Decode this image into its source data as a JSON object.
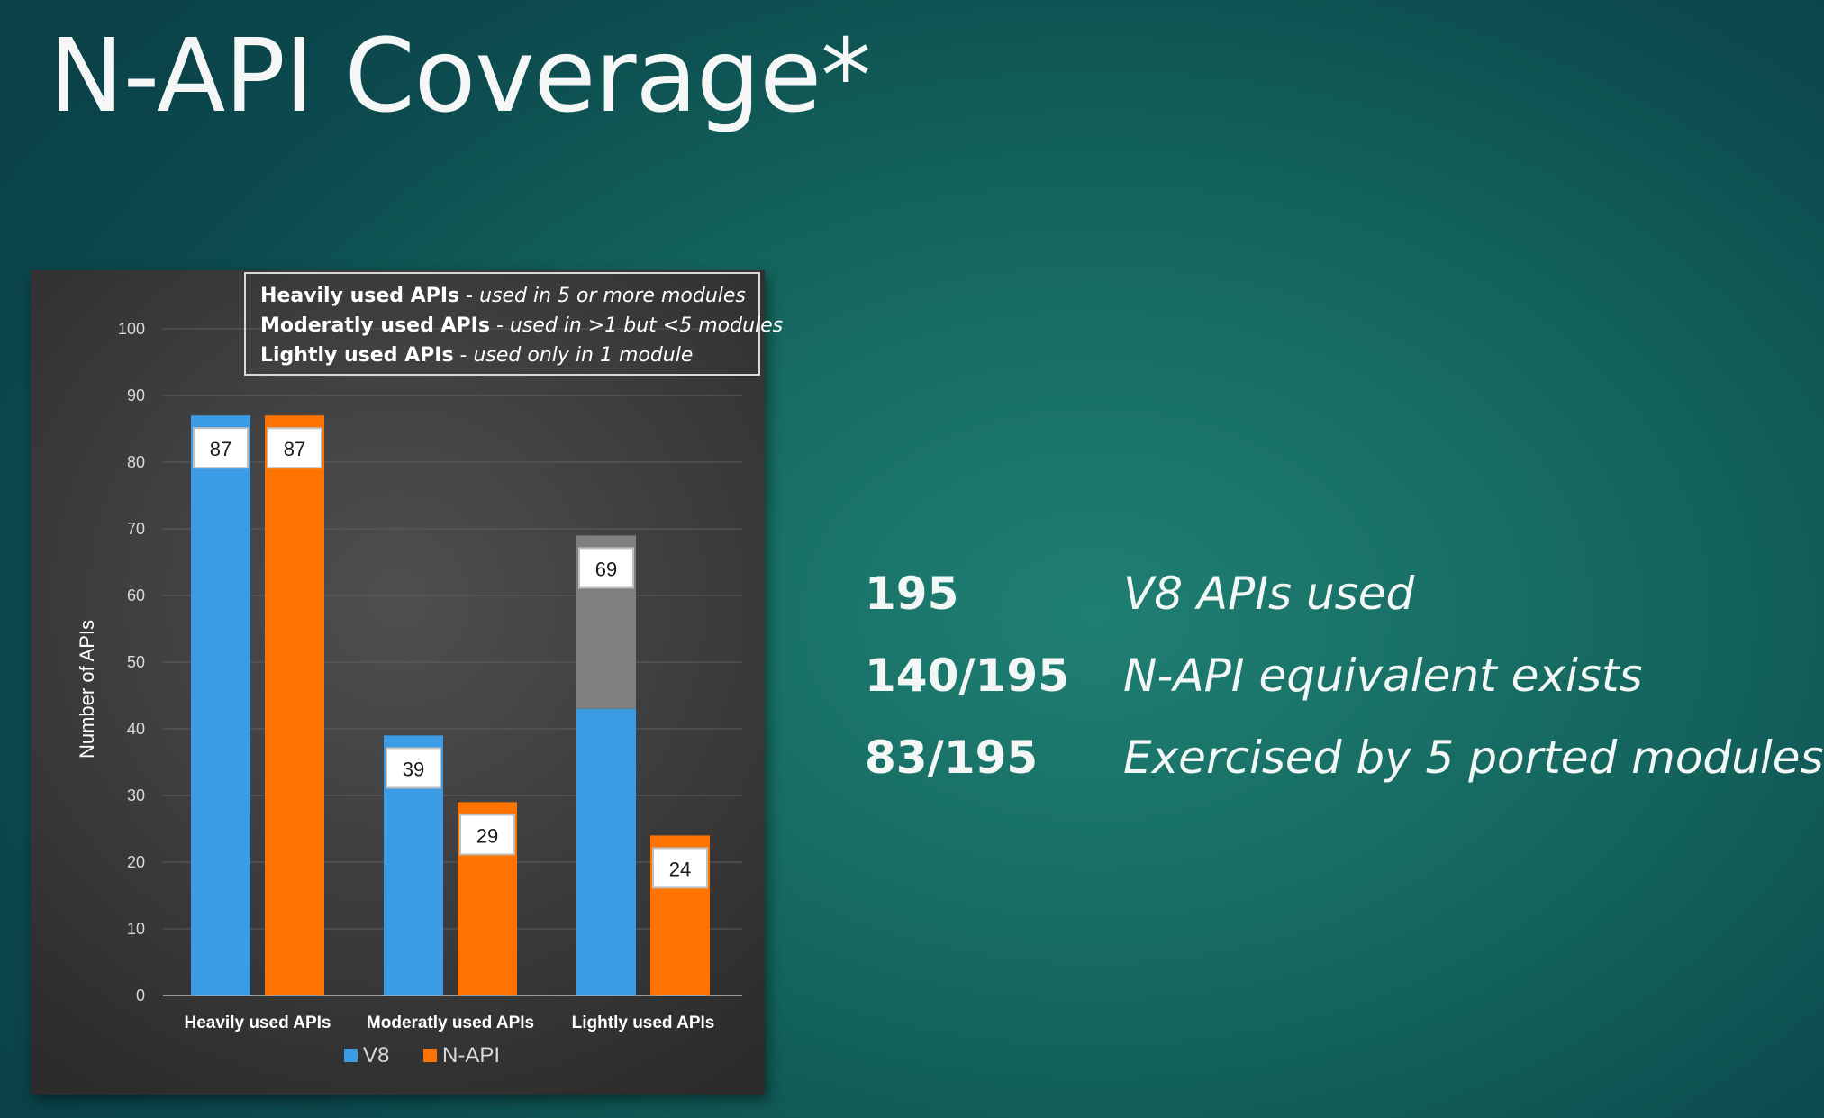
{
  "slide": {
    "title": "N-API Coverage*"
  },
  "definitions": [
    {
      "term": "Heavily used APIs",
      "desc": "used in 5 or more modules"
    },
    {
      "term": "Moderatly used APIs",
      "desc": "used in >1 but <5 modules"
    },
    {
      "term": "Lightly used APIs",
      "desc": "used only in 1 module"
    }
  ],
  "stats": [
    {
      "value": "195",
      "label": "V8 APIs used"
    },
    {
      "value": "140/195",
      "label": "N-API equivalent exists"
    },
    {
      "value": "83/195",
      "label": "Exercised by 5 ported modules"
    }
  ],
  "chart_data": {
    "type": "bar",
    "categories": [
      "Heavily used APIs",
      "Moderatly used APIs",
      "Lightly used APIs"
    ],
    "series": [
      {
        "name": "V8",
        "values": [
          87,
          39,
          69
        ],
        "color": "#3b9be4"
      },
      {
        "name": "N-API",
        "values": [
          87,
          29,
          24
        ],
        "color": "#ff7300"
      }
    ],
    "v8_lightly_split": {
      "blue_portion": 43,
      "grey_portion": 26,
      "grey_color": "#7f7f7f"
    },
    "ylabel": "Number of APIs",
    "xlabel": "",
    "ylim": [
      0,
      100
    ],
    "yticks": [
      0,
      10,
      20,
      30,
      40,
      50,
      60,
      70,
      80,
      90,
      100
    ],
    "grid": true,
    "legend": "bottom"
  }
}
